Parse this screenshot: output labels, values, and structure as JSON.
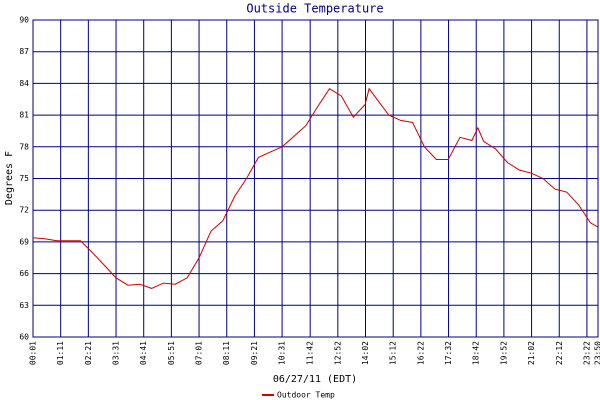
{
  "chart_data": {
    "type": "line",
    "title": "Outside Temperature",
    "x_label": "06/27/11 (EDT)",
    "y_label": "Degrees F",
    "x": [
      "00:01",
      "00:31",
      "01:01",
      "01:31",
      "02:01",
      "02:31",
      "03:01",
      "03:31",
      "04:01",
      "04:31",
      "05:01",
      "05:31",
      "06:01",
      "06:31",
      "07:01",
      "07:31",
      "08:01",
      "08:31",
      "09:01",
      "09:31",
      "10:01",
      "10:31",
      "11:01",
      "11:31",
      "12:01",
      "12:31",
      "13:01",
      "13:31",
      "14:01",
      "14:11",
      "14:31",
      "15:01",
      "15:31",
      "16:01",
      "16:31",
      "17:01",
      "17:31",
      "18:01",
      "18:31",
      "18:46",
      "19:01",
      "19:31",
      "20:01",
      "20:31",
      "21:01",
      "21:31",
      "22:01",
      "22:31",
      "23:01",
      "23:31",
      "23:50"
    ],
    "series": [
      {
        "name": "Outdoor Temp",
        "color": "#cc0000",
        "values": [
          69.4,
          69.3,
          69.1,
          69.1,
          69.1,
          68.0,
          66.8,
          65.6,
          64.9,
          65.0,
          64.6,
          65.1,
          65.0,
          65.6,
          67.5,
          70.0,
          71.0,
          73.3,
          75.0,
          77.0,
          77.5,
          78.0,
          79.0,
          80.0,
          81.8,
          83.5,
          82.8,
          80.8,
          82.0,
          83.5,
          82.5,
          81.0,
          80.5,
          80.3,
          78.0,
          76.8,
          76.8,
          78.9,
          78.6,
          79.8,
          78.5,
          77.8,
          76.5,
          75.8,
          75.5,
          75.0,
          74.0,
          73.7,
          72.5,
          70.8,
          70.4
        ]
      }
    ],
    "xlim": [
      "00:01",
      "23:50"
    ],
    "xticks": [
      "00:01",
      "01:11",
      "02:21",
      "03:31",
      "04:41",
      "05:51",
      "07:01",
      "08:11",
      "09:21",
      "10:31",
      "11:42",
      "12:52",
      "14:02",
      "15:12",
      "16:22",
      "17:32",
      "18:42",
      "19:52",
      "21:02",
      "22:12",
      "23:22",
      "23:50"
    ],
    "ylim": [
      60,
      90
    ],
    "yticks": [
      60,
      63,
      66,
      69,
      72,
      75,
      78,
      81,
      84,
      87,
      90
    ],
    "grid": true,
    "grid_color": "#000080",
    "legend": "bottom"
  }
}
